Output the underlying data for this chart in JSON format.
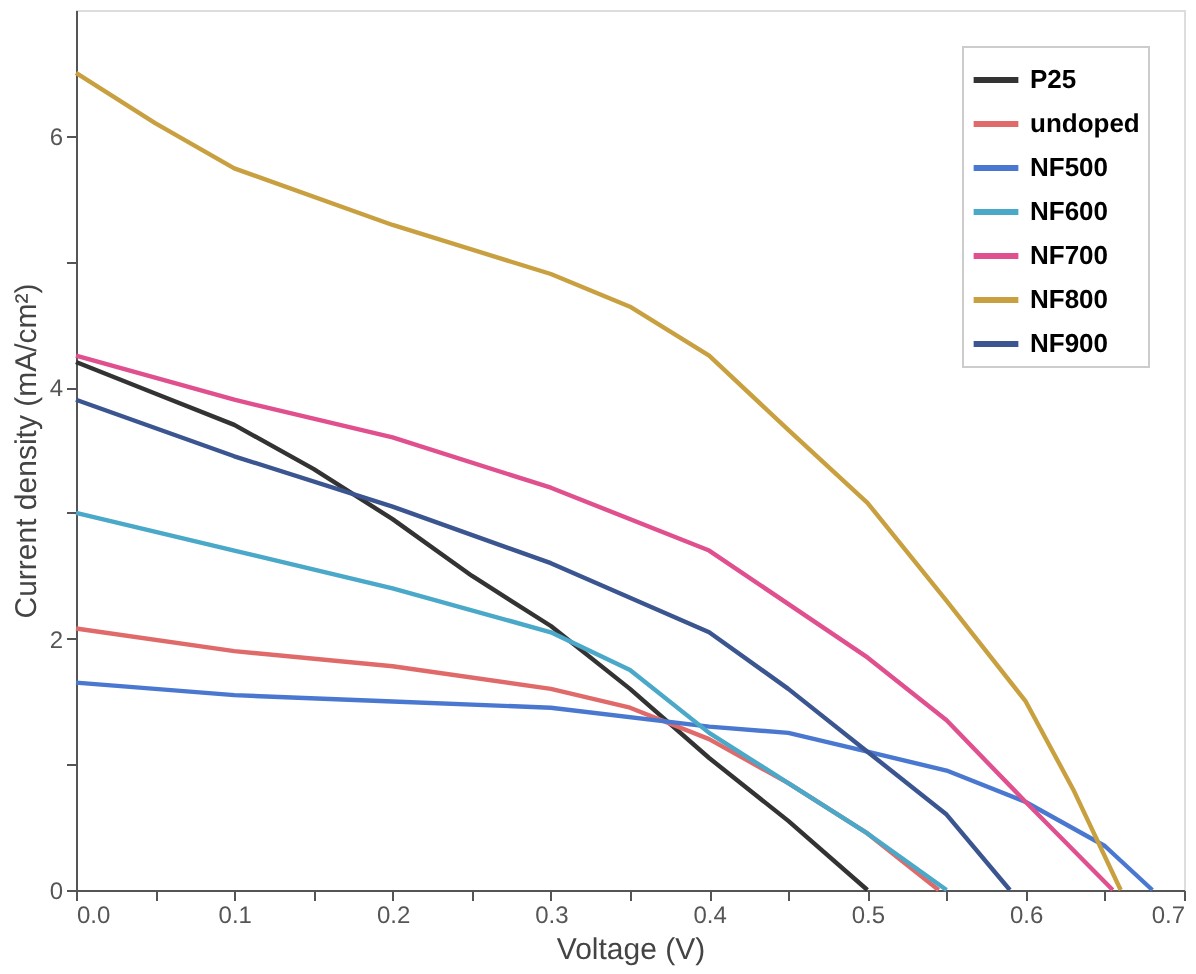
{
  "chart_data": {
    "type": "line",
    "xlabel": "Voltage (V)",
    "ylabel": "Current density (mA/cm²)",
    "xlim": [
      0,
      0.7
    ],
    "ylim": [
      0,
      7
    ],
    "xticks": [
      {
        "value": 0,
        "label": "0.0"
      },
      {
        "value": 0.05,
        "label": null
      },
      {
        "value": 0.1,
        "label": "0.1"
      },
      {
        "value": 0.15,
        "label": null
      },
      {
        "value": 0.2,
        "label": "0.2"
      },
      {
        "value": 0.25,
        "label": null
      },
      {
        "value": 0.3,
        "label": "0.3"
      },
      {
        "value": 0.35,
        "label": null
      },
      {
        "value": 0.4,
        "label": "0.4"
      },
      {
        "value": 0.45,
        "label": null
      },
      {
        "value": 0.5,
        "label": "0.5"
      },
      {
        "value": 0.55,
        "label": null
      },
      {
        "value": 0.6,
        "label": "0.6"
      },
      {
        "value": 0.65,
        "label": null
      },
      {
        "value": 0.7,
        "label": "0.7"
      }
    ],
    "yticks": [
      0,
      {
        "value": 1,
        "label": null
      },
      2,
      {
        "value": 3,
        "label": null
      },
      4,
      {
        "value": 5,
        "label": null
      },
      6
    ],
    "grid": false,
    "legend": "top right",
    "marker": "none",
    "line_style": "solid",
    "series": [
      {
        "name": "P25",
        "color": "#333333",
        "x": [
          0,
          0.05,
          0.1,
          0.15,
          0.2,
          0.25,
          0.3,
          0.35,
          0.4,
          0.45,
          0.5
        ],
        "values": [
          4.2,
          3.95,
          3.7,
          3.35,
          2.95,
          2.5,
          2.1,
          1.6,
          1.05,
          0.55,
          0
        ]
      },
      {
        "name": "undoped",
        "color": "#e06a6a",
        "x": [
          0,
          0.1,
          0.2,
          0.3,
          0.35,
          0.4,
          0.45,
          0.5,
          0.545
        ],
        "values": [
          2.08,
          1.9,
          1.78,
          1.6,
          1.45,
          1.2,
          0.85,
          0.45,
          0
        ]
      },
      {
        "name": "NF500",
        "color": "#4a78d0",
        "x": [
          0,
          0.1,
          0.2,
          0.3,
          0.4,
          0.45,
          0.5,
          0.55,
          0.6,
          0.65,
          0.68
        ],
        "values": [
          1.65,
          1.55,
          1.5,
          1.45,
          1.3,
          1.25,
          1.1,
          0.95,
          0.7,
          0.35,
          0
        ]
      },
      {
        "name": "NF600",
        "color": "#4aa8c8",
        "x": [
          0,
          0.1,
          0.2,
          0.3,
          0.35,
          0.4,
          0.45,
          0.5,
          0.55
        ],
        "values": [
          3.0,
          2.7,
          2.4,
          2.05,
          1.75,
          1.25,
          0.85,
          0.45,
          0
        ]
      },
      {
        "name": "NF700",
        "color": "#e0508f",
        "x": [
          0,
          0.1,
          0.2,
          0.3,
          0.4,
          0.5,
          0.55,
          0.6,
          0.655
        ],
        "values": [
          4.25,
          3.9,
          3.6,
          3.2,
          2.7,
          1.85,
          1.35,
          0.7,
          0
        ]
      },
      {
        "name": "NF800",
        "color": "#c8a040",
        "x": [
          0,
          0.05,
          0.1,
          0.2,
          0.3,
          0.35,
          0.4,
          0.45,
          0.5,
          0.55,
          0.6,
          0.63,
          0.66
        ],
        "values": [
          6.5,
          6.1,
          5.74,
          5.29,
          4.9,
          4.64,
          4.25,
          3.66,
          3.08,
          2.3,
          1.5,
          0.8,
          0
        ]
      },
      {
        "name": "NF900",
        "color": "#3a5590",
        "x": [
          0,
          0.1,
          0.2,
          0.3,
          0.4,
          0.45,
          0.5,
          0.55,
          0.59
        ],
        "values": [
          3.9,
          3.45,
          3.05,
          2.6,
          2.05,
          1.6,
          1.1,
          0.6,
          0
        ]
      }
    ]
  }
}
